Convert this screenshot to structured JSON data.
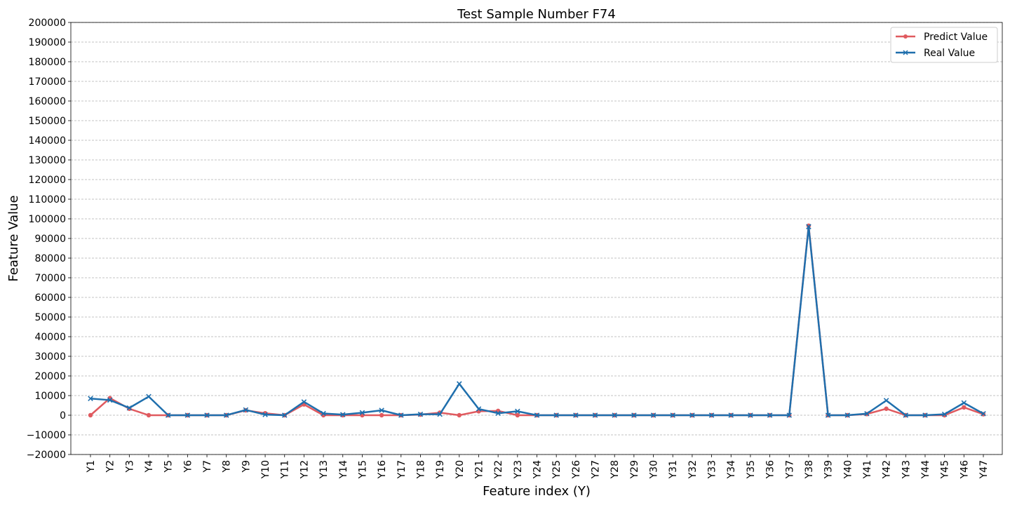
{
  "chart_data": {
    "type": "line",
    "title": "Test Sample Number F74",
    "xlabel": "Feature index (Y)",
    "ylabel": "Feature Value",
    "ylim": [
      -20000,
      200000
    ],
    "ytick_step": 10000,
    "grid": "horizontal-dashed",
    "legend_position": "top-right",
    "categories": [
      "Y1",
      "Y2",
      "Y3",
      "Y4",
      "Y5",
      "Y6",
      "Y7",
      "Y8",
      "Y9",
      "Y10",
      "Y11",
      "Y12",
      "Y13",
      "Y14",
      "Y15",
      "Y16",
      "Y17",
      "Y18",
      "Y19",
      "Y20",
      "Y21",
      "Y22",
      "Y23",
      "Y24",
      "Y25",
      "Y26",
      "Y27",
      "Y28",
      "Y29",
      "Y30",
      "Y31",
      "Y32",
      "Y33",
      "Y34",
      "Y35",
      "Y36",
      "Y37",
      "Y38",
      "Y39",
      "Y40",
      "Y41",
      "Y42",
      "Y43",
      "Y44",
      "Y45",
      "Y46",
      "Y47"
    ],
    "series": [
      {
        "name": "Predict Value",
        "color": "#e05a5f",
        "marker": "circle",
        "values": [
          0,
          8700,
          3300,
          0,
          0,
          0,
          0,
          0,
          2500,
          1000,
          0,
          5500,
          0,
          0,
          0,
          0,
          0,
          300,
          1300,
          0,
          2000,
          2200,
          0,
          0,
          0,
          0,
          0,
          0,
          0,
          0,
          0,
          0,
          0,
          0,
          0,
          0,
          0,
          96500,
          0,
          0,
          600,
          3300,
          0,
          0,
          0,
          4000,
          500
        ]
      },
      {
        "name": "Real Value",
        "color": "#1f6fad",
        "marker": "x",
        "values": [
          8500,
          7700,
          3700,
          9500,
          0,
          0,
          0,
          0,
          2700,
          300,
          0,
          6800,
          900,
          300,
          1300,
          2500,
          0,
          500,
          500,
          16000,
          3200,
          1000,
          2000,
          0,
          0,
          0,
          0,
          0,
          0,
          0,
          0,
          0,
          0,
          0,
          0,
          0,
          0,
          96000,
          0,
          0,
          800,
          7500,
          0,
          0,
          500,
          6300,
          800
        ]
      }
    ]
  }
}
